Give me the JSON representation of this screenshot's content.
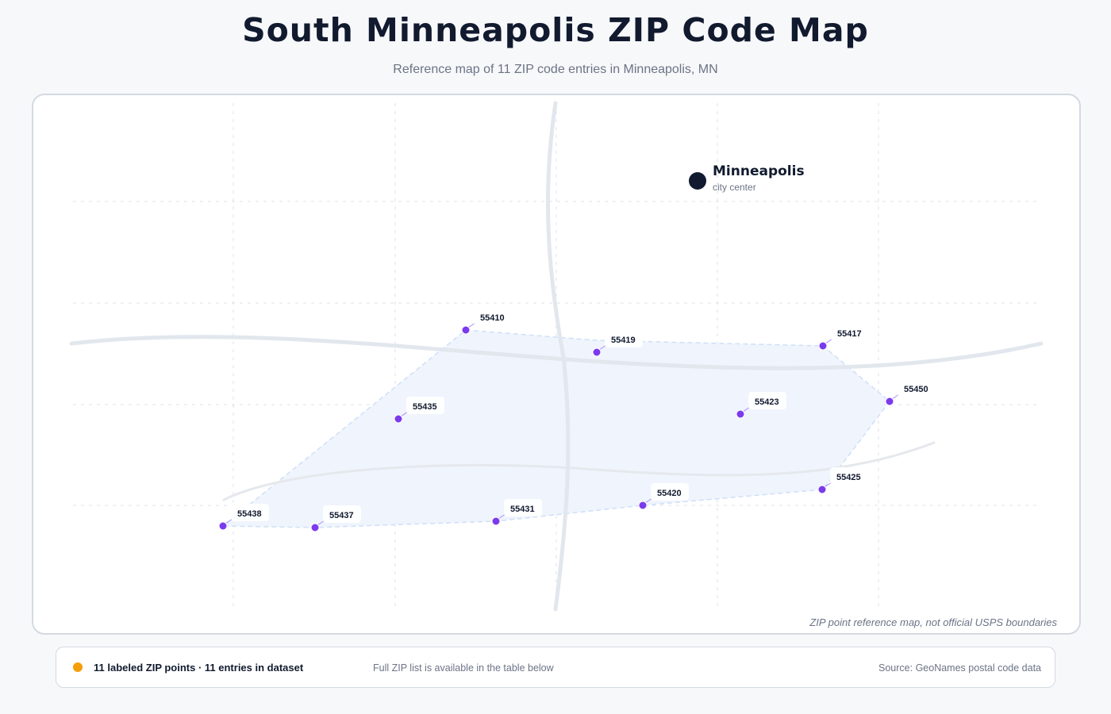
{
  "header": {
    "title": "South Minneapolis ZIP Code Map",
    "subtitle": "Reference map of 11 ZIP code entries in Minneapolis, MN"
  },
  "map": {
    "city": {
      "name": "Minneapolis",
      "caption": "city center"
    },
    "zip_points": [
      {
        "zip": "55410"
      },
      {
        "zip": "55419"
      },
      {
        "zip": "55417"
      },
      {
        "zip": "55450"
      },
      {
        "zip": "55435"
      },
      {
        "zip": "55423"
      },
      {
        "zip": "55425"
      },
      {
        "zip": "55420"
      },
      {
        "zip": "55431"
      },
      {
        "zip": "55437"
      },
      {
        "zip": "55438"
      }
    ],
    "disclaimer": "ZIP point reference map, not official USPS boundaries"
  },
  "legend": {
    "count_text": "11 labeled ZIP points · 11 entries in dataset",
    "note": "Full ZIP list is available in the table below",
    "source": "Source: GeoNames postal code data"
  },
  "colors": {
    "zip_point": "#7c3aed",
    "city_marker": "#111a2e",
    "coverage_fill": "#eff4fd",
    "coverage_stroke": "#cfe0f7",
    "legend_dot": "#f59e0b",
    "road": "#e2e7ee"
  }
}
